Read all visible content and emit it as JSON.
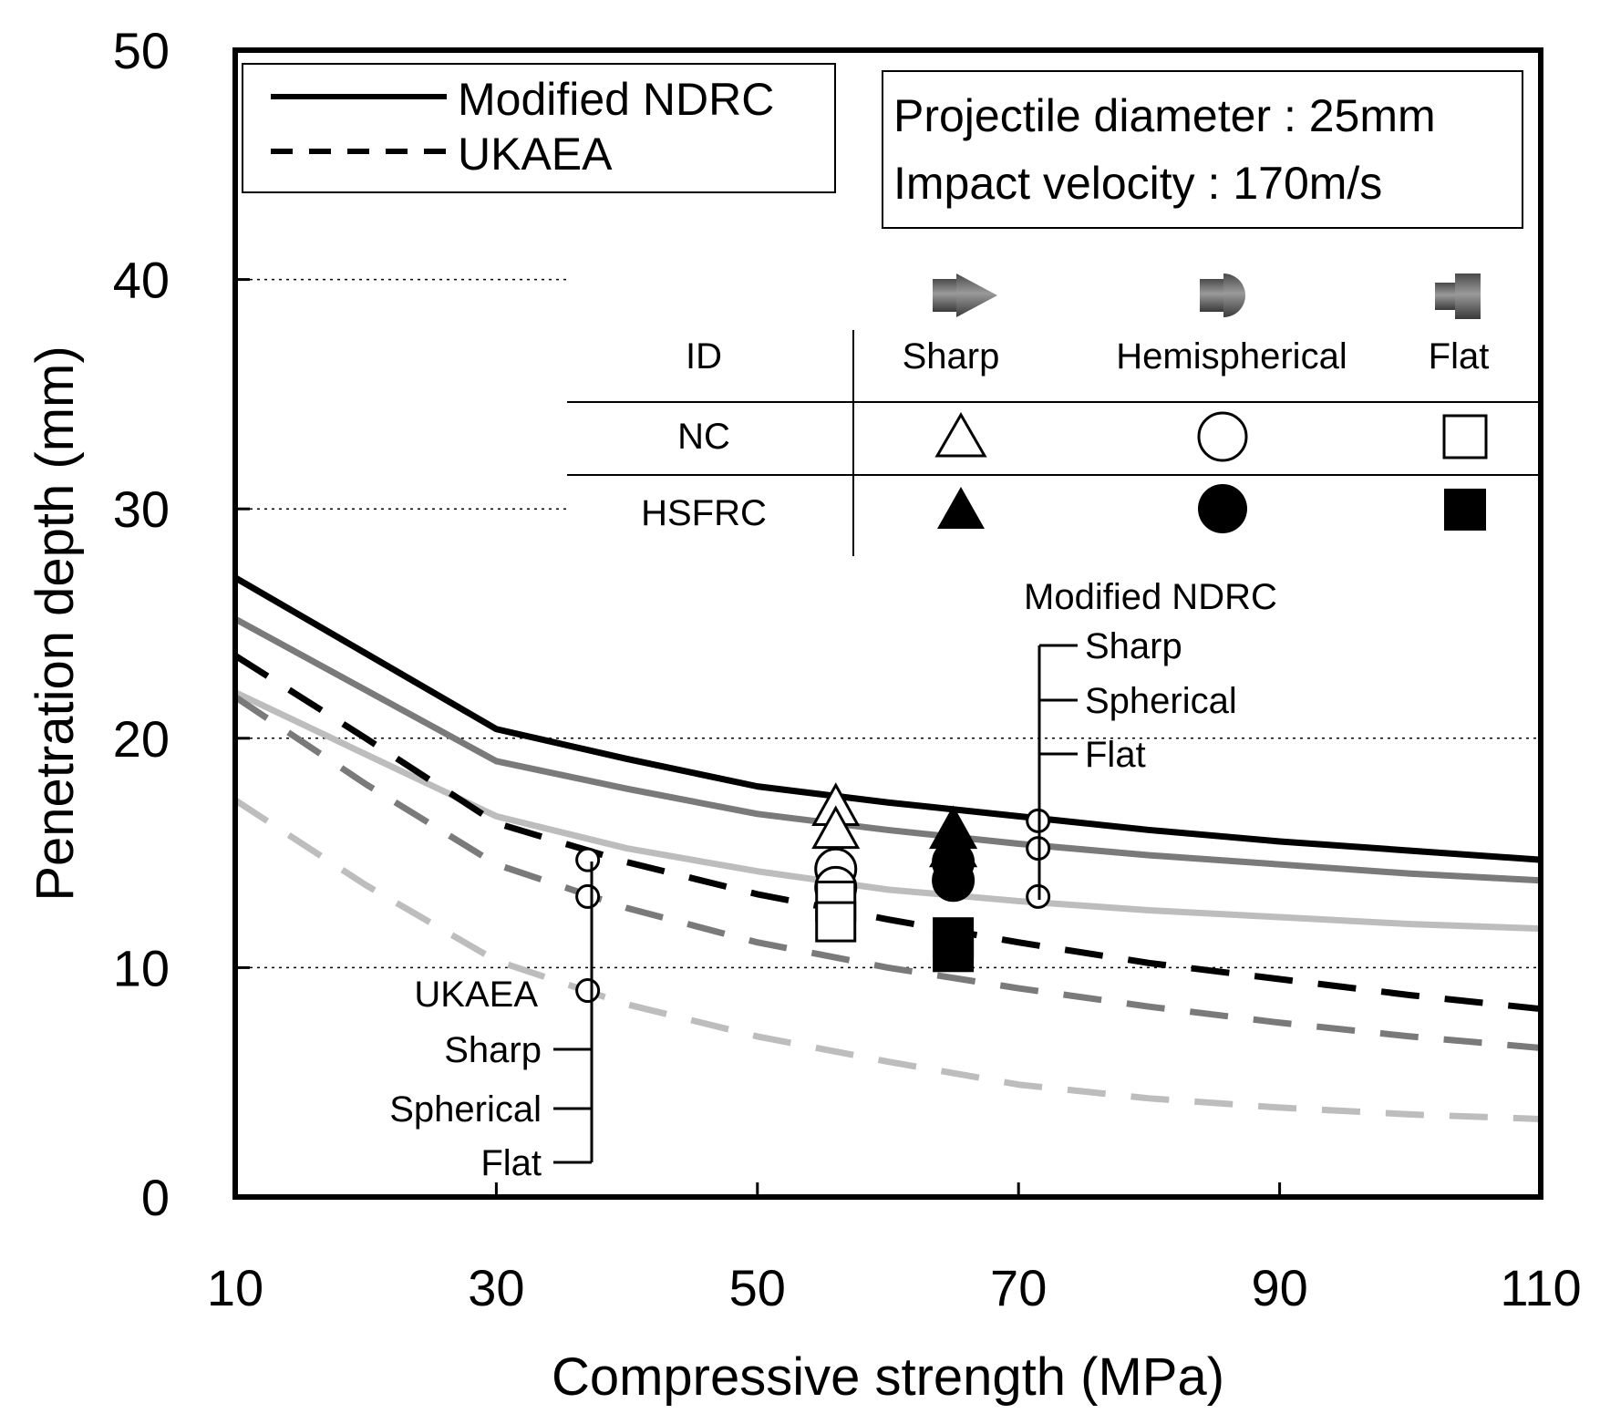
{
  "chart_data": {
    "type": "line",
    "title": "",
    "xlabel": "Compressive strength (MPa)",
    "ylabel": "Penetration depth (mm)",
    "xlim": [
      10,
      110
    ],
    "ylim": [
      0,
      50
    ],
    "xticks": [
      10,
      30,
      50,
      70,
      90,
      110
    ],
    "yticks": [
      0,
      10,
      20,
      30,
      40,
      50
    ],
    "gridlines_y": [
      10,
      20,
      30,
      40
    ],
    "legend": {
      "placement": "top-left",
      "entries": [
        {
          "label": "Modified NDRC",
          "style": "solid"
        },
        {
          "label": "UKAEA",
          "style": "dashed"
        }
      ]
    },
    "info_box": {
      "placement": "top-right",
      "line1": "Projectile diameter : 25mm",
      "line2": "Impact velocity : 170m/s"
    },
    "id_table": {
      "header_id": "ID",
      "columns": [
        "Sharp",
        "Hemispherical",
        "Flat"
      ],
      "rows": [
        "NC",
        "HSFRC"
      ]
    },
    "annotations": {
      "ndrc": {
        "title": "Modified NDRC",
        "items": [
          "Sharp",
          "Spherical",
          "Flat"
        ]
      },
      "ukaea": {
        "title": "UKAEA",
        "items": [
          "Sharp",
          "Spherical",
          "Flat"
        ]
      }
    },
    "series": [
      {
        "name": "Modified NDRC - Sharp",
        "style": "solid",
        "color": "#000000",
        "x": [
          10,
          20,
          30,
          40,
          50,
          60,
          70,
          80,
          90,
          100,
          110
        ],
        "y": [
          27.0,
          23.7,
          20.4,
          19.1,
          17.9,
          17.2,
          16.6,
          16.0,
          15.5,
          15.1,
          14.7
        ]
      },
      {
        "name": "Modified NDRC - Spherical",
        "style": "solid",
        "color": "#7a7a7a",
        "x": [
          10,
          20,
          30,
          40,
          50,
          60,
          70,
          80,
          90,
          100,
          110
        ],
        "y": [
          25.2,
          22.1,
          19.0,
          17.8,
          16.7,
          16.0,
          15.4,
          14.9,
          14.5,
          14.1,
          13.8
        ]
      },
      {
        "name": "Modified NDRC - Flat",
        "style": "solid",
        "color": "#bdbdbd",
        "x": [
          10,
          20,
          30,
          40,
          50,
          60,
          70,
          80,
          90,
          100,
          110
        ],
        "y": [
          22.0,
          19.3,
          16.6,
          15.2,
          14.2,
          13.4,
          12.9,
          12.5,
          12.2,
          11.9,
          11.7
        ]
      },
      {
        "name": "UKAEA - Sharp",
        "style": "dashed",
        "color": "#000000",
        "x": [
          10,
          20,
          30,
          40,
          50,
          60,
          70,
          80,
          90,
          100,
          110
        ],
        "y": [
          23.6,
          20.0,
          16.3,
          14.6,
          13.2,
          12.1,
          11.1,
          10.2,
          9.5,
          8.8,
          8.2
        ]
      },
      {
        "name": "UKAEA - Spherical",
        "style": "dashed",
        "color": "#7a7a7a",
        "x": [
          10,
          20,
          30,
          40,
          50,
          60,
          70,
          80,
          90,
          100,
          110
        ],
        "y": [
          21.8,
          18.0,
          14.5,
          12.6,
          11.1,
          10.0,
          9.1,
          8.3,
          7.6,
          7.0,
          6.5
        ]
      },
      {
        "name": "UKAEA - Flat",
        "style": "dashed",
        "color": "#bdbdbd",
        "x": [
          10,
          20,
          30,
          40,
          50,
          60,
          70,
          80,
          90,
          100,
          110
        ],
        "y": [
          17.3,
          13.6,
          10.3,
          8.4,
          7.0,
          5.9,
          4.9,
          4.3,
          3.9,
          3.6,
          3.4
        ]
      }
    ],
    "points": [
      {
        "group": "NC",
        "shape": "triangle",
        "filled": false,
        "x": 56,
        "y": 17.0
      },
      {
        "group": "NC",
        "shape": "triangle",
        "filled": false,
        "x": 56,
        "y": 16.0
      },
      {
        "group": "NC",
        "shape": "circle",
        "filled": false,
        "x": 56,
        "y": 14.3
      },
      {
        "group": "NC",
        "shape": "circle",
        "filled": false,
        "x": 56,
        "y": 13.5
      },
      {
        "group": "NC",
        "shape": "square",
        "filled": false,
        "x": 56,
        "y": 12.9
      },
      {
        "group": "NC",
        "shape": "square",
        "filled": false,
        "x": 56,
        "y": 12.0
      },
      {
        "group": "HSFRC",
        "shape": "triangle",
        "filled": true,
        "x": 65,
        "y": 16.0
      },
      {
        "group": "HSFRC",
        "shape": "triangle",
        "filled": true,
        "x": 65,
        "y": 15.2
      },
      {
        "group": "HSFRC",
        "shape": "circle",
        "filled": true,
        "x": 65,
        "y": 14.6
      },
      {
        "group": "HSFRC",
        "shape": "circle",
        "filled": true,
        "x": 65,
        "y": 13.8
      },
      {
        "group": "HSFRC",
        "shape": "square",
        "filled": true,
        "x": 65,
        "y": 11.3
      },
      {
        "group": "HSFRC",
        "shape": "square",
        "filled": true,
        "x": 65,
        "y": 10.7
      },
      {
        "group": "marker",
        "shape": "ring",
        "filled": false,
        "x": 37,
        "y": 14.7
      },
      {
        "group": "marker",
        "shape": "ring",
        "filled": false,
        "x": 37,
        "y": 13.1
      },
      {
        "group": "marker",
        "shape": "ring",
        "filled": false,
        "x": 37,
        "y": 9.0
      },
      {
        "group": "marker",
        "shape": "ring",
        "filled": false,
        "x": 71.5,
        "y": 16.4
      },
      {
        "group": "marker",
        "shape": "ring",
        "filled": false,
        "x": 71.5,
        "y": 15.2
      },
      {
        "group": "marker",
        "shape": "ring",
        "filled": false,
        "x": 71.5,
        "y": 13.1
      }
    ]
  }
}
